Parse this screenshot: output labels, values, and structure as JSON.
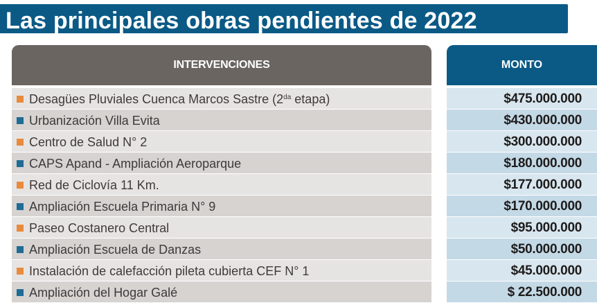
{
  "title": "Las principales obras pendientes de 2022",
  "headers": {
    "interventions": "INTERVENCIONES",
    "amount": "MONTO"
  },
  "colors": {
    "title_background": "#0b5a86",
    "header_left_background": "#6b6562",
    "header_right_background": "#0b5a86",
    "bullet_orange": "#e98a3c",
    "bullet_blue": "#1f6c96"
  },
  "rows": [
    {
      "name": "Desagües Pluviales Cuenca Marcos Sastre (2",
      "name_sup": "da",
      "name_suffix": " etapa)",
      "amount": "$475.000.000",
      "bullet": "orange"
    },
    {
      "name": "Urbanización Villa Evita",
      "amount": "$430.000.000",
      "bullet": "blue"
    },
    {
      "name": "Centro de Salud N° 2",
      "amount": "$300.000.000",
      "bullet": "orange"
    },
    {
      "name": "CAPS Apand - Ampliación Aeroparque",
      "amount": "$180.000.000",
      "bullet": "blue"
    },
    {
      "name": "Red de Ciclovía 11 Km.",
      "amount": "$177.000.000",
      "bullet": "orange"
    },
    {
      "name": "Ampliación Escuela Primaria N° 9",
      "amount": "$170.000.000",
      "bullet": "blue"
    },
    {
      "name": "Paseo Costanero Central",
      "amount": "$95.000.000",
      "bullet": "orange"
    },
    {
      "name": "Ampliación Escuela de Danzas",
      "amount": "$50.000.000",
      "bullet": "blue"
    },
    {
      "name": "Instalación de calefacción pileta cubierta CEF N° 1",
      "amount": "$45.000.000",
      "bullet": "orange"
    },
    {
      "name": "Ampliación del Hogar Galé",
      "amount": "$ 22.500.000",
      "bullet": "blue"
    }
  ]
}
